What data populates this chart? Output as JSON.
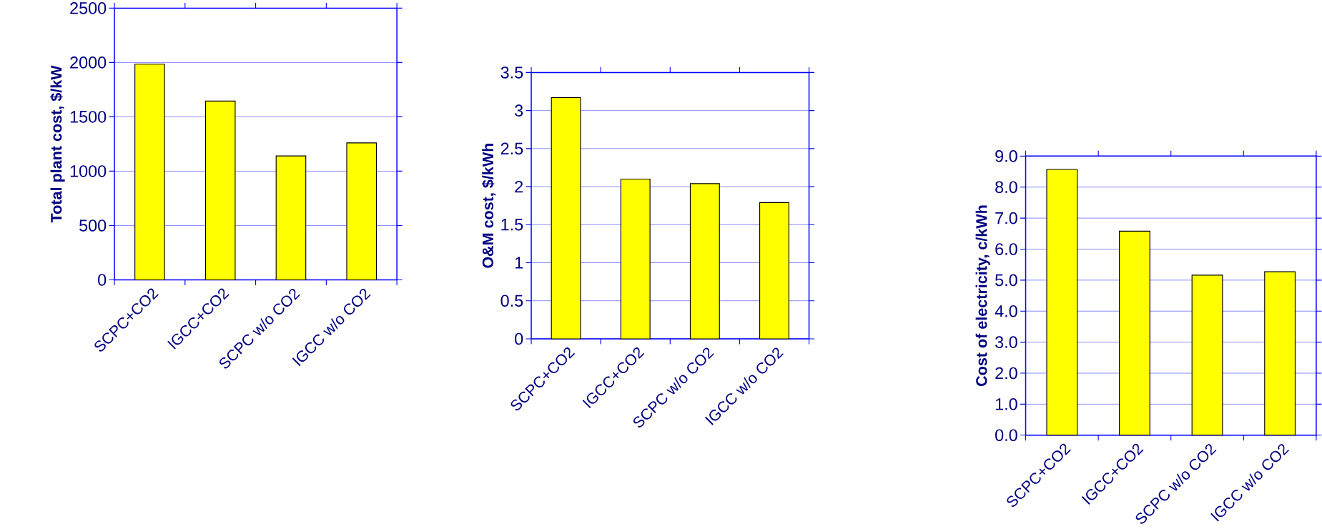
{
  "chart_data": [
    {
      "type": "bar",
      "categories": [
        "SCPC+CO2",
        "IGCC+CO2",
        "SCPC w/o CO2",
        "IGCC w/o CO2"
      ],
      "values": [
        1985,
        1645,
        1140,
        1260
      ],
      "color": "#ffff00",
      "ylabel": "Total plant cost,  $/kW",
      "ylim": [
        0,
        2500
      ],
      "yticks": [
        0,
        500,
        1000,
        1500,
        2000,
        2500
      ],
      "grid": "y"
    },
    {
      "type": "bar",
      "categories": [
        "SCPC+CO2",
        "IGCC+CO2",
        "SCPC w/o CO2",
        "IGCC w/o CO2"
      ],
      "values": [
        3.17,
        2.1,
        2.04,
        1.79
      ],
      "color": "#ffff00",
      "ylabel": "O&M cost,  $/kWh",
      "ylim": [
        0,
        3.5
      ],
      "yticks": [
        0,
        0.5,
        1,
        1.5,
        2,
        2.5,
        3,
        3.5
      ],
      "grid": "y"
    },
    {
      "type": "bar",
      "categories": [
        "SCPC+CO2",
        "IGCC+CO2",
        "SCPC w/o CO2",
        "IGCC w/o CO2"
      ],
      "values": [
        8.57,
        6.58,
        5.16,
        5.27
      ],
      "color": "#ffff00",
      "ylabel": "Cost of electricity,  c/kWh",
      "ylim": [
        0,
        9
      ],
      "yticks": [
        {
          "value": 0,
          "label": "0.0"
        },
        {
          "value": 1,
          "label": "1.0"
        },
        {
          "value": 2,
          "label": "2.0"
        },
        {
          "value": 3,
          "label": "3.0"
        },
        {
          "value": 4,
          "label": "4.0"
        },
        {
          "value": 5,
          "label": "5.0"
        },
        {
          "value": 6,
          "label": "6.0"
        },
        {
          "value": 7,
          "label": "7.0"
        },
        {
          "value": 8,
          "label": "8.0"
        },
        {
          "value": 9,
          "label": "9.0"
        }
      ],
      "grid": "y"
    }
  ]
}
